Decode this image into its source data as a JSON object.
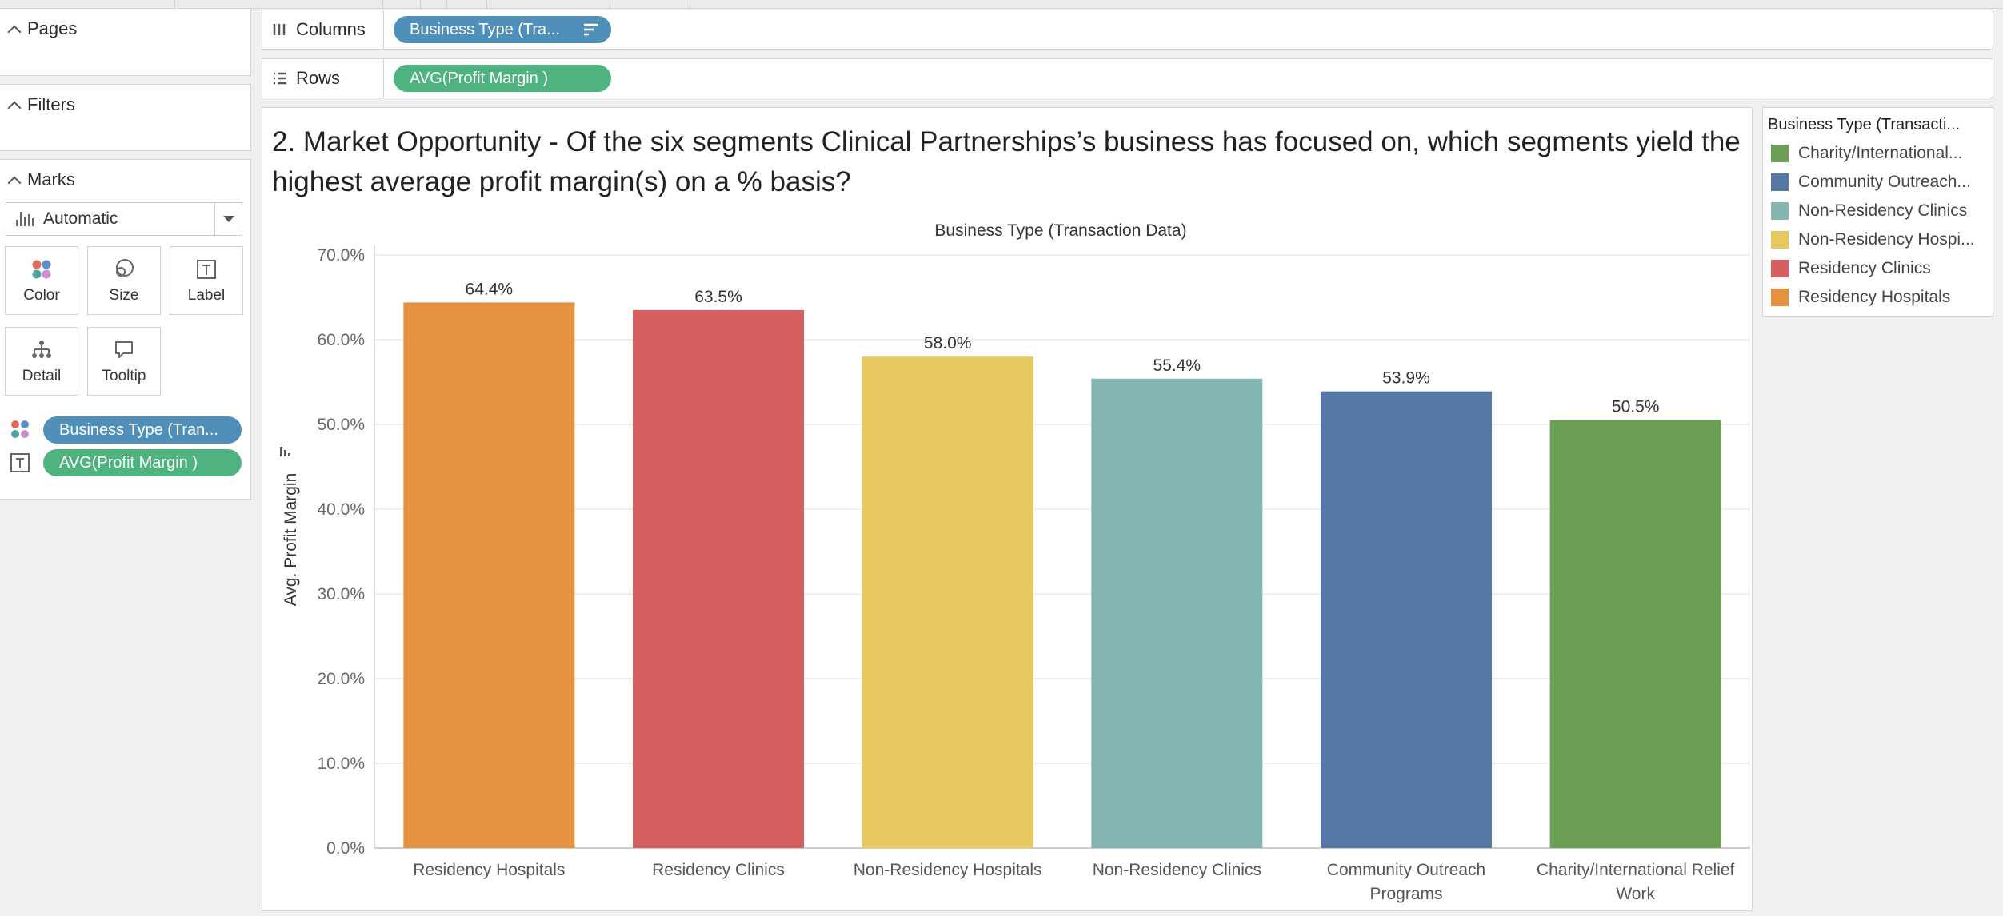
{
  "panels": {
    "pages_label": "Pages",
    "filters_label": "Filters",
    "marks_label": "Marks",
    "mark_type": "Automatic",
    "mark_buttons": [
      "Color",
      "Size",
      "Label",
      "Detail",
      "Tooltip"
    ],
    "mark_pills": [
      {
        "icon": "color-dots-icon",
        "label": "Business Type (Tran..."
      },
      {
        "icon": "text-label-icon",
        "label": "AVG(Profit Margin )"
      }
    ]
  },
  "shelves": {
    "columns_label": "Columns",
    "columns_pill": "Business Type (Tra...",
    "rows_label": "Rows",
    "rows_pill": "AVG(Profit Margin )"
  },
  "worksheet": {
    "title": "2. Market Opportunity - Of the six segments Clinical Partnerships’s business has focused on, which segments yield the highest average profit margin(s) on a % basis?"
  },
  "legend": {
    "title": "Business Type (Transacti...",
    "items": [
      {
        "label": "Charity/International...",
        "color": "#6a9f55"
      },
      {
        "label": "Community Outreach...",
        "color": "#5678a5"
      },
      {
        "label": "Non-Residency Clinics",
        "color": "#85b5b2"
      },
      {
        "label": "Non-Residency Hospi...",
        "color": "#e6c85f"
      },
      {
        "label": "Residency Clinics",
        "color": "#d6605f"
      },
      {
        "label": "Residency Hospitals",
        "color": "#e69341"
      }
    ]
  },
  "colors": {
    "pill_blue": "#4f8fb8",
    "pill_green": "#4fb37f"
  },
  "chart_data": {
    "type": "bar",
    "title": "Business Type (Transaction Data)",
    "xlabel": "",
    "ylabel": "Avg. Profit Margin",
    "ylim": [
      0,
      70
    ],
    "y_ticks": [
      "0.0%",
      "10.0%",
      "20.0%",
      "30.0%",
      "40.0%",
      "50.0%",
      "60.0%",
      "70.0%"
    ],
    "categories": [
      [
        "Residency Hospitals"
      ],
      [
        "Residency Clinics"
      ],
      [
        "Non-Residency Hospitals"
      ],
      [
        "Non-Residency Clinics"
      ],
      [
        "Community Outreach",
        "Programs"
      ],
      [
        "Charity/International Relief",
        "Work"
      ]
    ],
    "values": [
      64.4,
      63.5,
      58.0,
      55.4,
      53.9,
      50.5
    ],
    "data_labels": [
      "64.4%",
      "63.5%",
      "58.0%",
      "55.4%",
      "53.9%",
      "50.5%"
    ],
    "colors": [
      "#e69341",
      "#d6605f",
      "#e6c85f",
      "#85b5b2",
      "#5678a5",
      "#6a9f55"
    ],
    "grid": true,
    "legend_position": "right"
  }
}
